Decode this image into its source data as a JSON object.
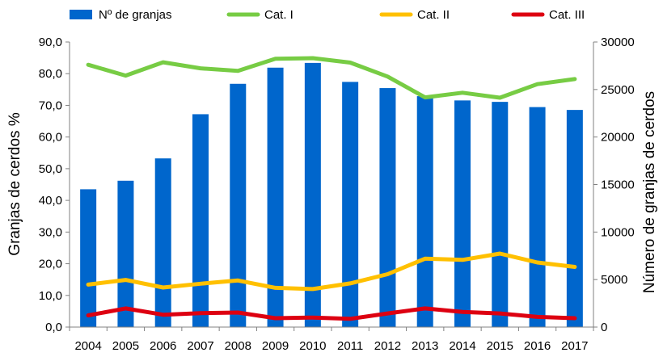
{
  "chart_data": {
    "type": "bar+line",
    "title": "",
    "categories": [
      "2004",
      "2005",
      "2006",
      "2007",
      "2008",
      "2009",
      "2010",
      "2011",
      "2012",
      "2013",
      "2014",
      "2015",
      "2016",
      "2017"
    ],
    "bars": {
      "name": "Nº de granjas",
      "axis": "right",
      "color": "#0066cc",
      "values": [
        14500,
        15400,
        17750,
        22400,
        25600,
        27300,
        27800,
        25800,
        25150,
        24300,
        23850,
        23700,
        23150,
        22850
      ]
    },
    "series": [
      {
        "name": "Cat. I",
        "axis": "left",
        "color": "#77cc44",
        "values": [
          82.8,
          79.4,
          83.6,
          81.7,
          80.9,
          84.7,
          84.9,
          83.5,
          79.1,
          72.5,
          74.0,
          72.4,
          76.7,
          78.3
        ]
      },
      {
        "name": "Cat. II",
        "axis": "left",
        "color": "#ffc000",
        "values": [
          13.4,
          14.9,
          12.5,
          13.7,
          14.7,
          12.4,
          12.0,
          13.8,
          16.7,
          21.6,
          21.2,
          23.2,
          20.4,
          19.0
        ]
      },
      {
        "name": "Cat. III",
        "axis": "left",
        "color": "#dd0011",
        "values": [
          3.7,
          5.9,
          3.9,
          4.4,
          4.6,
          2.8,
          3.0,
          2.6,
          4.3,
          5.9,
          4.8,
          4.3,
          3.2,
          2.8
        ]
      }
    ],
    "y_left": {
      "label": "Granjas de cerdos %",
      "min": 0,
      "max": 90,
      "step": 10,
      "ticks": [
        "0,0",
        "10,0",
        "20,0",
        "30,0",
        "40,0",
        "50,0",
        "60,0",
        "70,0",
        "80,0",
        "90,0"
      ]
    },
    "y_right": {
      "label": "Número de granjas de cerdos",
      "min": 0,
      "max": 30000,
      "step": 5000,
      "ticks": [
        "0",
        "5000",
        "10000",
        "15000",
        "20000",
        "25000",
        "30000"
      ]
    },
    "legend": {
      "position": "top",
      "items": [
        "Nº de granjas",
        "Cat. I",
        "Cat. II",
        "Cat. III"
      ]
    },
    "grid": false
  }
}
